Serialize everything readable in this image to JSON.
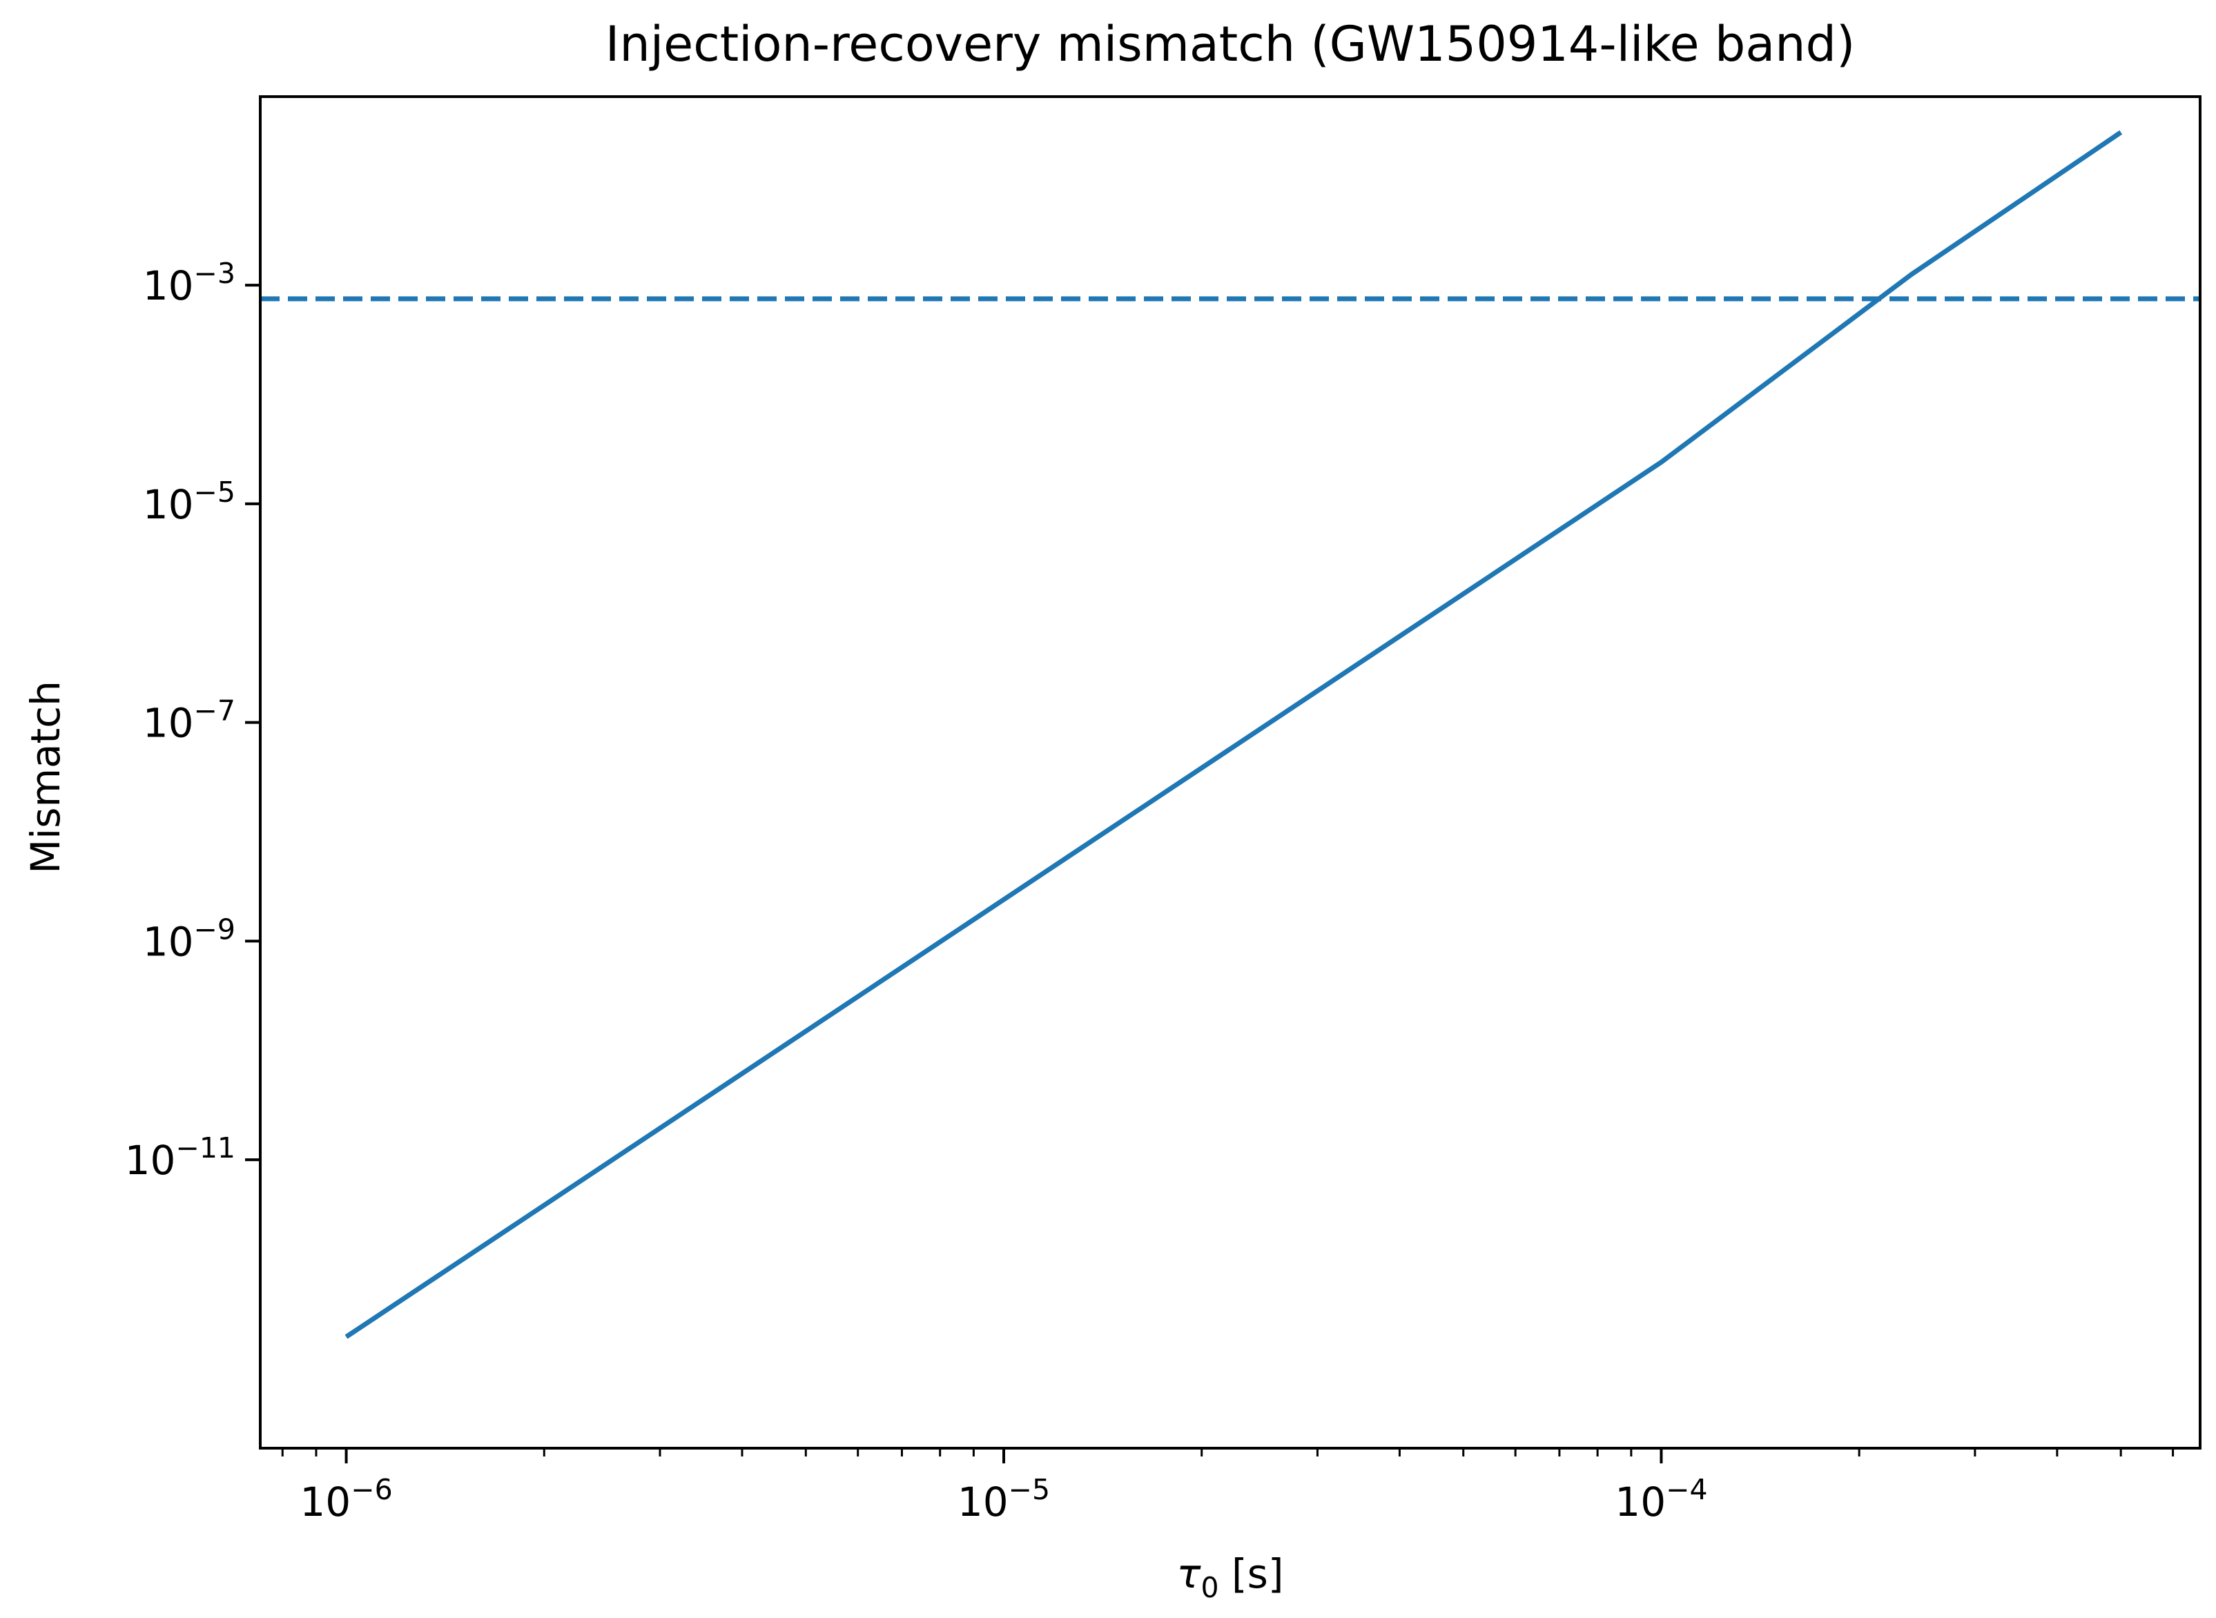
{
  "chart_data": {
    "type": "line",
    "title": "Injection-recovery mismatch (GW150914-like band)",
    "xlabel_symbol": "τ",
    "xlabel_subscript": "0",
    "xlabel_unit": " [s]",
    "ylabel": "Mismatch",
    "x_scale": "log",
    "y_scale": "log",
    "xlim": [
      7.4e-07,
      0.00066
    ],
    "ylim": [
      2.3e-14,
      0.053
    ],
    "x_ticks": [
      {
        "base": "10",
        "exp": "−6",
        "value": 1e-06
      },
      {
        "base": "10",
        "exp": "−5",
        "value": 1e-05
      },
      {
        "base": "10",
        "exp": "−4",
        "value": 0.0001
      }
    ],
    "y_ticks": [
      {
        "base": "10",
        "exp": "−3",
        "value": 0.001
      },
      {
        "base": "10",
        "exp": "−5",
        "value": 1e-05
      },
      {
        "base": "10",
        "exp": "−7",
        "value": 1e-07
      },
      {
        "base": "10",
        "exp": "−9",
        "value": 1e-09
      },
      {
        "base": "10",
        "exp": "−11",
        "value": 1e-11
      }
    ],
    "series": [
      {
        "style": "solid",
        "color": "#1f77b4",
        "x": [
          1e-06,
          1e-05,
          0.0001,
          0.00024,
          0.0005
        ],
        "y": [
          2.4e-13,
          2.4e-09,
          2.4e-05,
          0.00125,
          0.025
        ]
      }
    ],
    "hlines": [
      {
        "style": "dashed",
        "color": "#1f77b4",
        "y": 0.00075
      }
    ],
    "grid": false,
    "legend": "none"
  }
}
